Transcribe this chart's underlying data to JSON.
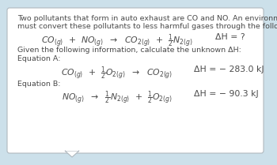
{
  "bg_color": "#cce0ea",
  "box_color": "#ffffff",
  "box_edge_color": "#b0b8be",
  "text_color": "#4a4a4a",
  "intro_line1": "Two pollutants that form in auto exhaust are CO and NO. An environmental chemist",
  "intro_line2": "must convert these pollutants to less harmful gases through the following:",
  "given_text": "Given the following information, calculate the unknown ΔH:",
  "eq_a_label": "Equation A:",
  "eq_a_dH": "ΔH = − 283.0 kJ",
  "eq_b_label": "Equation B:",
  "eq_b_dH": "ΔH = − 90.3 kJ",
  "main_dH": "ΔH = ?",
  "font_size_small": 6.8,
  "font_size_eq": 7.8
}
